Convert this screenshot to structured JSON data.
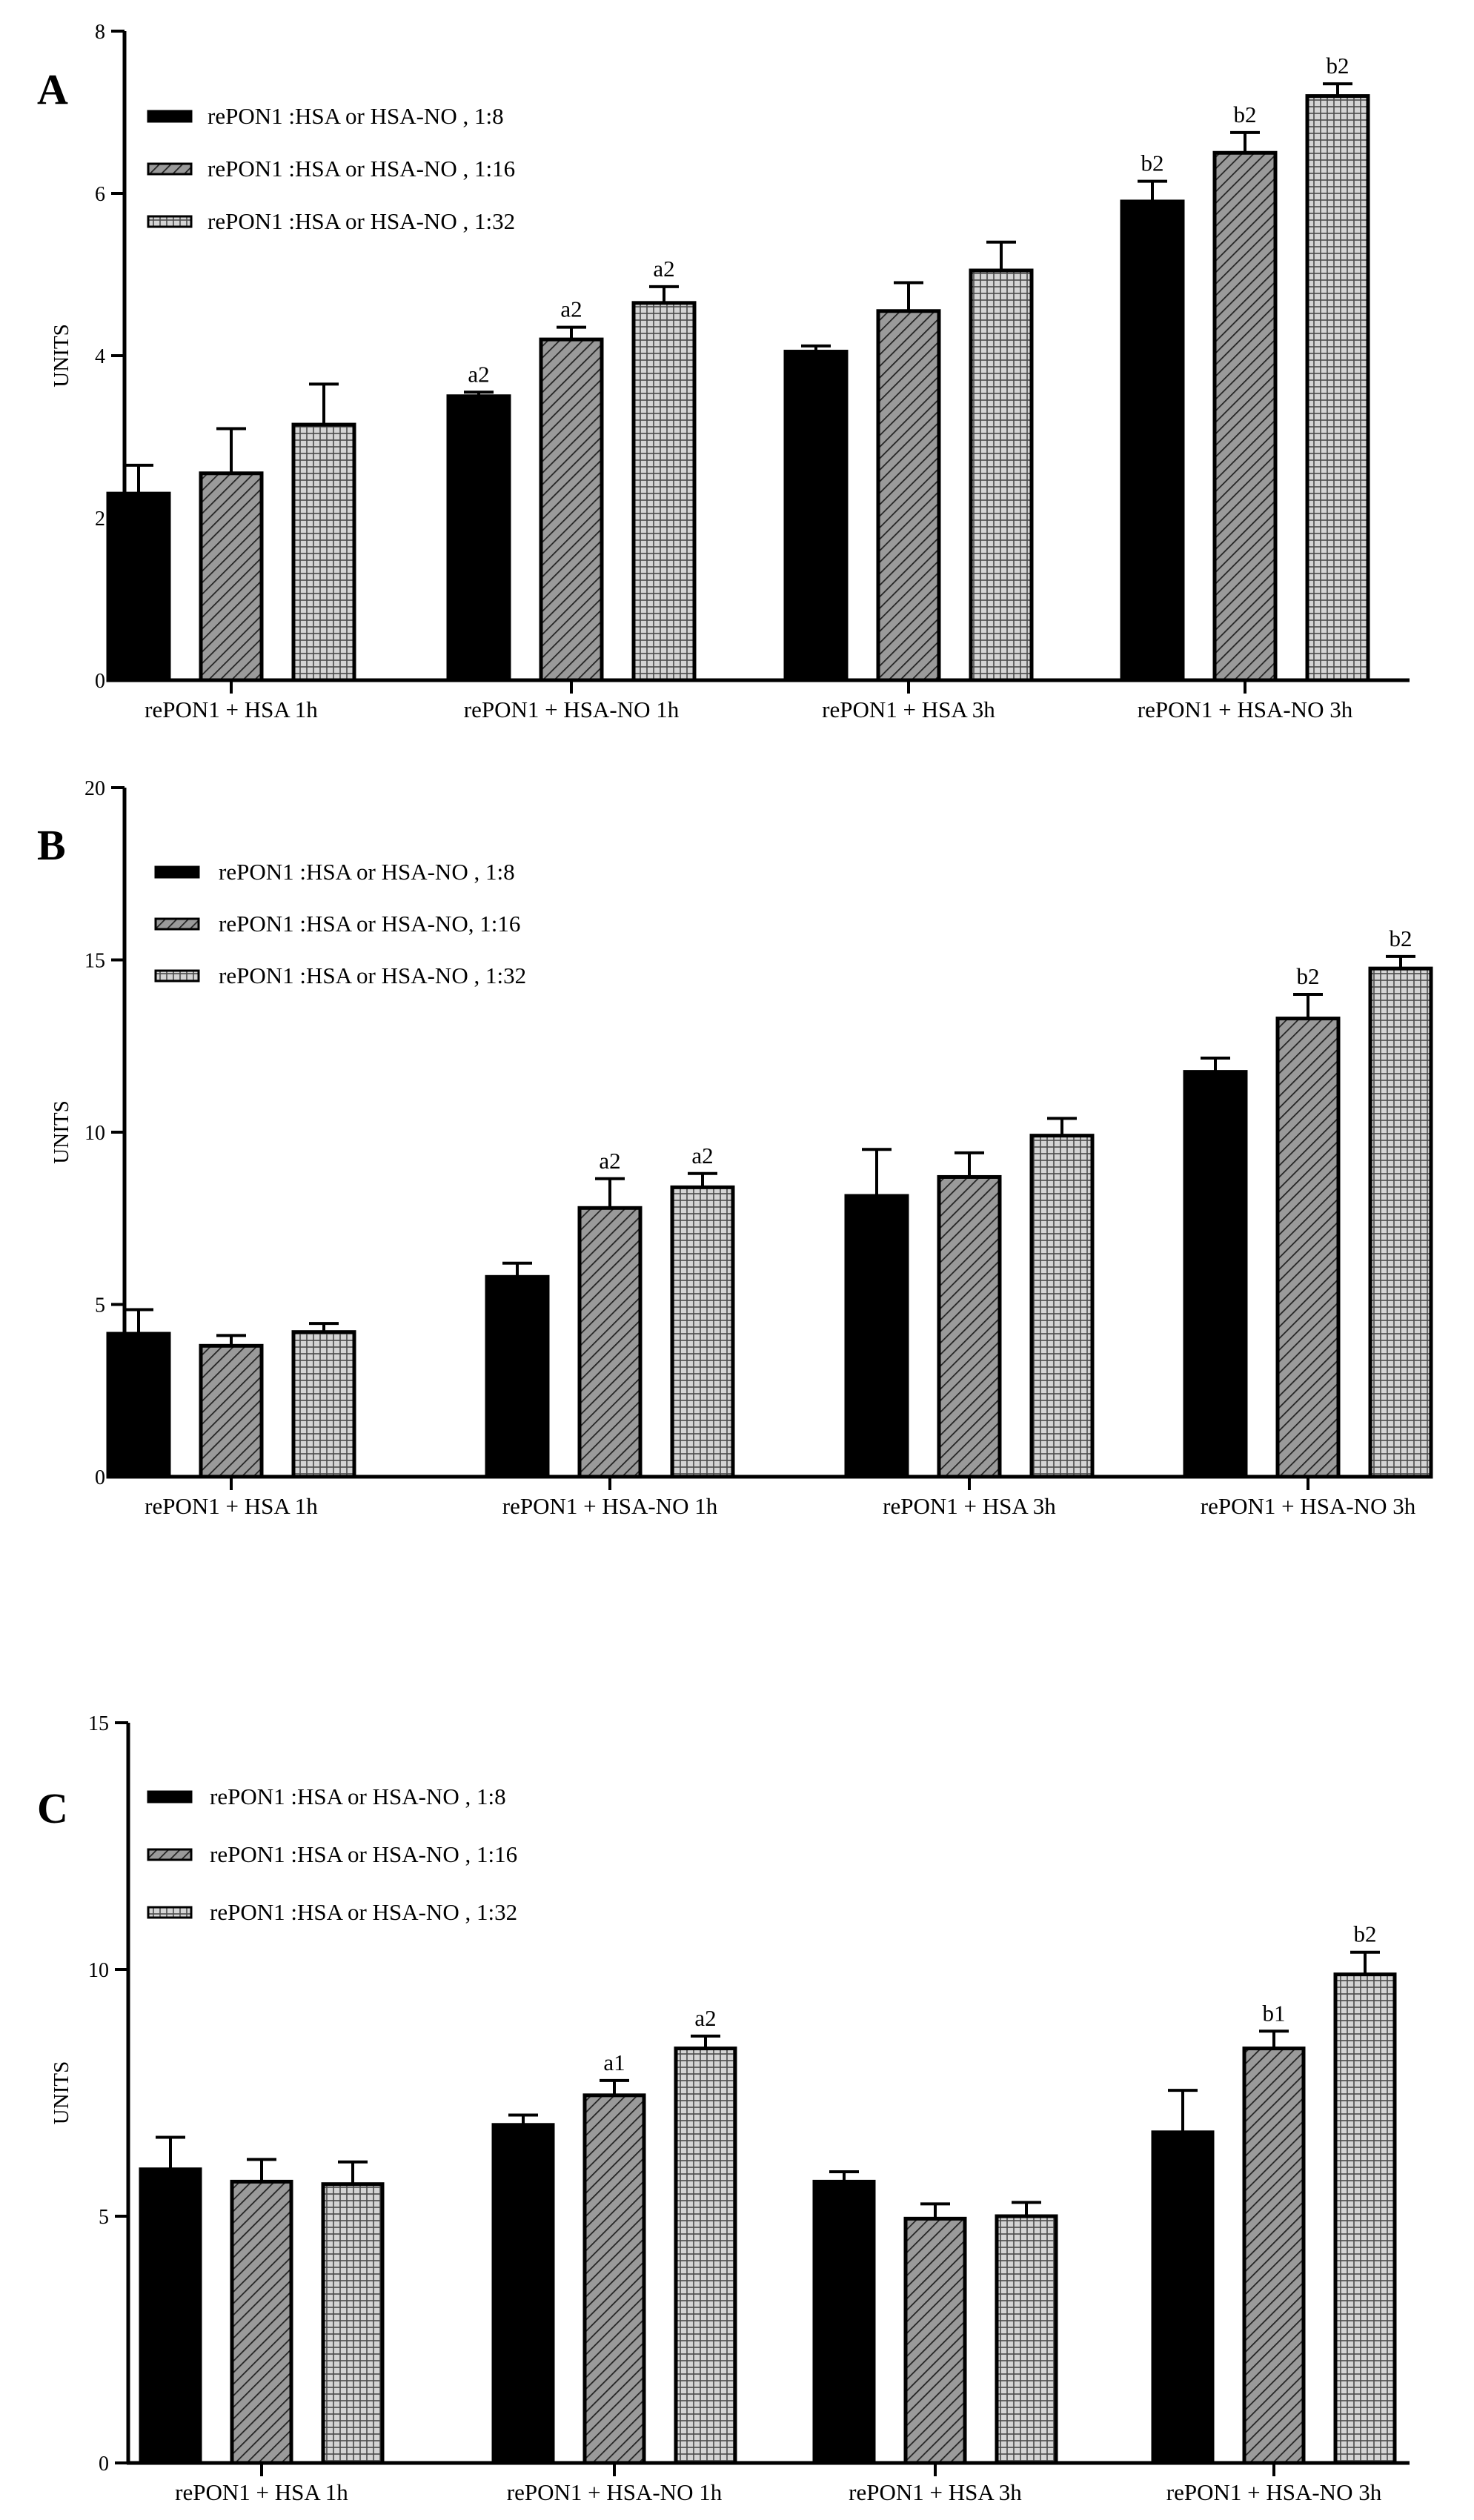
{
  "chart_data": [
    {
      "type": "bar",
      "panel_label": "A",
      "ylabel": "UNITS",
      "ylim": [
        0,
        8
      ],
      "yticks": [
        0,
        2,
        4,
        6,
        8
      ],
      "categories": [
        "rePON1 + HSA 1h",
        "rePON1 + HSA-NO 1h",
        "rePON1 + HSA 3h",
        "rePON1 + HSA-NO 3h"
      ],
      "legend_position": "top-left",
      "series": [
        {
          "name": "rePON1 :HSA or HSA-NO , 1:8",
          "values": [
            2.3,
            3.5,
            4.05,
            5.9
          ],
          "errors": [
            0.35,
            0.05,
            0.07,
            0.25
          ],
          "labels": [
            "",
            "a2",
            "",
            "b2"
          ]
        },
        {
          "name": "rePON1 :HSA or HSA-NO , 1:16",
          "values": [
            2.55,
            4.2,
            4.55,
            6.5
          ],
          "errors": [
            0.55,
            0.15,
            0.35,
            0.25
          ],
          "labels": [
            "",
            "a2",
            "",
            "b2"
          ]
        },
        {
          "name": "rePON1 :HSA or HSA-NO , 1:32",
          "values": [
            3.15,
            4.65,
            5.05,
            7.2
          ],
          "errors": [
            0.5,
            0.2,
            0.35,
            0.15
          ],
          "labels": [
            "",
            "a2",
            "",
            "b2"
          ]
        }
      ]
    },
    {
      "type": "bar",
      "panel_label": "B",
      "ylabel": "UNITS",
      "ylim": [
        0,
        20
      ],
      "yticks": [
        0,
        5,
        10,
        15,
        20
      ],
      "categories": [
        "rePON1 + HSA 1h",
        "rePON1 + HSA-NO 1h",
        "rePON1 + HSA 3h",
        "rePON1 + HSA-NO 3h"
      ],
      "legend_position": "top-left",
      "series": [
        {
          "name": "rePON1 :HSA or HSA-NO , 1:8",
          "values": [
            4.15,
            5.8,
            8.15,
            11.75
          ],
          "errors": [
            0.7,
            0.4,
            1.35,
            0.4
          ],
          "labels": [
            "",
            "",
            "",
            ""
          ]
        },
        {
          "name": "rePON1 :HSA or HSA-NO, 1:16",
          "values": [
            3.8,
            7.8,
            8.7,
            13.3
          ],
          "errors": [
            0.3,
            0.85,
            0.7,
            0.7
          ],
          "labels": [
            "",
            "a2",
            "",
            "b2"
          ]
        },
        {
          "name": "rePON1 :HSA or HSA-NO , 1:32",
          "values": [
            4.2,
            8.4,
            9.9,
            14.75
          ],
          "errors": [
            0.25,
            0.4,
            0.5,
            0.35
          ],
          "labels": [
            "",
            "a2",
            "",
            "b2"
          ]
        }
      ]
    },
    {
      "type": "bar",
      "panel_label": "C",
      "ylabel": "UNITS",
      "ylim": [
        0,
        15
      ],
      "yticks": [
        0,
        5,
        10,
        15
      ],
      "categories": [
        "rePON1 + HSA 1h",
        "rePON1 + HSA-NO 1h",
        "rePON1 + HSA 3h",
        "rePON1 + HSA-NO 3h"
      ],
      "legend_position": "top-left",
      "series": [
        {
          "name": "rePON1 :HSA or HSA-NO , 1:8",
          "values": [
            5.95,
            6.85,
            5.7,
            6.7
          ],
          "errors": [
            0.65,
            0.2,
            0.2,
            0.85
          ],
          "labels": [
            "",
            "",
            "",
            ""
          ]
        },
        {
          "name": "rePON1 :HSA or HSA-NO , 1:16",
          "values": [
            5.7,
            7.45,
            4.95,
            8.4
          ],
          "errors": [
            0.45,
            0.3,
            0.3,
            0.35
          ],
          "labels": [
            "",
            "a1",
            "",
            "b1"
          ]
        },
        {
          "name": "rePON1 :HSA or HSA-NO , 1:32",
          "values": [
            5.65,
            8.4,
            5.0,
            9.9
          ],
          "errors": [
            0.45,
            0.25,
            0.28,
            0.45
          ],
          "labels": [
            "",
            "a2",
            "",
            "b2"
          ]
        }
      ]
    }
  ]
}
